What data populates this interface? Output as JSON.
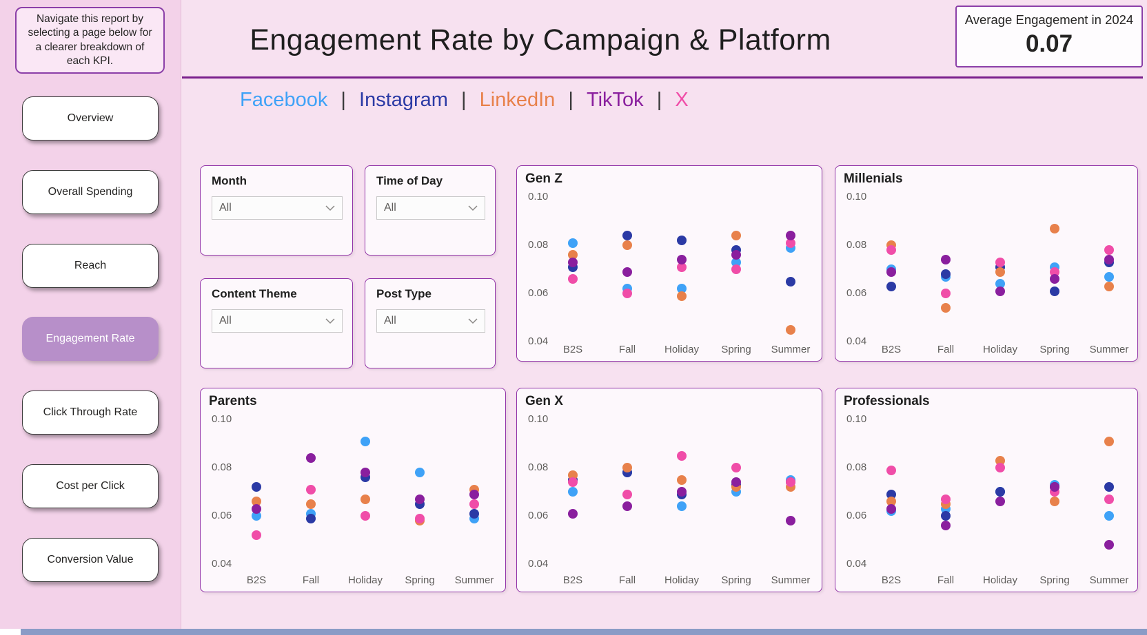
{
  "sidebar": {
    "note": "Navigate this report by selecting a page below for a clearer breakdown of each KPI.",
    "items": [
      {
        "label": "Overview",
        "selected": false
      },
      {
        "label": "Overall Spending",
        "selected": false
      },
      {
        "label": "Reach",
        "selected": false
      },
      {
        "label": "Engagement Rate",
        "selected": true
      },
      {
        "label": "Click Through Rate",
        "selected": false
      },
      {
        "label": "Cost per Click",
        "selected": false
      },
      {
        "label": "Conversion Value",
        "selected": false
      }
    ]
  },
  "header": {
    "title": "Engagement Rate by Campaign & Platform",
    "kpi": {
      "label": "Average Engagement in 2024",
      "value": "0.07"
    }
  },
  "legend": {
    "separator": "|",
    "items": [
      {
        "label": "Facebook",
        "color": "#3FA2F7"
      },
      {
        "label": "Instagram",
        "color": "#2B3AA5"
      },
      {
        "label": "LinkedIn",
        "color": "#E8814B"
      },
      {
        "label": "TikTok",
        "color": "#8A1F9E"
      },
      {
        "label": "X",
        "color": "#F04DA8"
      }
    ]
  },
  "filters": [
    {
      "label": "Month",
      "value": "All"
    },
    {
      "label": "Time of Day",
      "value": "All"
    },
    {
      "label": "Content Theme",
      "value": "All"
    },
    {
      "label": "Post Type",
      "value": "All"
    }
  ],
  "chart_data": [
    {
      "type": "scatter",
      "title": "Gen Z",
      "categories": [
        "B2S",
        "Fall",
        "Holiday",
        "Spring",
        "Summer"
      ],
      "y_ticks": [
        0.04,
        0.06,
        0.08,
        0.1
      ],
      "ylim": [
        0.04,
        0.1
      ],
      "series": [
        {
          "name": "Facebook",
          "color": "#3FA2F7",
          "values": [
            0.081,
            0.062,
            0.062,
            0.073,
            0.079
          ]
        },
        {
          "name": "Instagram",
          "color": "#2B3AA5",
          "values": [
            0.071,
            0.084,
            0.082,
            0.078,
            0.065
          ]
        },
        {
          "name": "LinkedIn",
          "color": "#E8814B",
          "values": [
            0.076,
            0.08,
            0.059,
            0.084,
            0.045
          ]
        },
        {
          "name": "X",
          "color": "#F04DA8",
          "values": [
            0.066,
            0.06,
            0.071,
            0.07,
            0.081
          ]
        },
        {
          "name": "TikTok",
          "color": "#8A1F9E",
          "values": [
            0.073,
            0.069,
            0.074,
            0.076,
            0.084
          ]
        }
      ]
    },
    {
      "type": "scatter",
      "title": "Millenials",
      "categories": [
        "B2S",
        "Fall",
        "Holiday",
        "Spring",
        "Summer"
      ],
      "y_ticks": [
        0.04,
        0.06,
        0.08,
        0.1
      ],
      "ylim": [
        0.04,
        0.1
      ],
      "series": [
        {
          "name": "Facebook",
          "color": "#3FA2F7",
          "values": [
            0.07,
            0.067,
            0.064,
            0.071,
            0.067
          ]
        },
        {
          "name": "Instagram",
          "color": "#2B3AA5",
          "values": [
            0.063,
            0.068,
            0.071,
            0.061,
            0.073
          ]
        },
        {
          "name": "LinkedIn",
          "color": "#E8814B",
          "values": [
            0.08,
            0.054,
            0.069,
            0.087,
            0.063
          ]
        },
        {
          "name": "X",
          "color": "#F04DA8",
          "values": [
            0.078,
            0.06,
            0.073,
            0.069,
            0.078
          ]
        },
        {
          "name": "TikTok",
          "color": "#8A1F9E",
          "values": [
            0.069,
            0.074,
            0.061,
            0.066,
            0.074
          ]
        }
      ]
    },
    {
      "type": "scatter",
      "title": "Parents",
      "categories": [
        "B2S",
        "Fall",
        "Holiday",
        "Spring",
        "Summer"
      ],
      "y_ticks": [
        0.04,
        0.06,
        0.08,
        0.1
      ],
      "ylim": [
        0.04,
        0.1
      ],
      "series": [
        {
          "name": "Facebook",
          "color": "#3FA2F7",
          "values": [
            0.06,
            0.061,
            0.091,
            0.078,
            0.059
          ]
        },
        {
          "name": "Instagram",
          "color": "#2B3AA5",
          "values": [
            0.072,
            0.059,
            0.076,
            0.065,
            0.061
          ]
        },
        {
          "name": "LinkedIn",
          "color": "#E8814B",
          "values": [
            0.066,
            0.065,
            0.067,
            0.058,
            0.071
          ]
        },
        {
          "name": "X",
          "color": "#F04DA8",
          "values": [
            0.052,
            0.071,
            0.06,
            0.059,
            0.065
          ]
        },
        {
          "name": "TikTok",
          "color": "#8A1F9E",
          "values": [
            0.063,
            0.084,
            0.078,
            0.067,
            0.069
          ]
        }
      ]
    },
    {
      "type": "scatter",
      "title": "Gen X",
      "categories": [
        "B2S",
        "Fall",
        "Holiday",
        "Spring",
        "Summer"
      ],
      "y_ticks": [
        0.04,
        0.06,
        0.08,
        0.1
      ],
      "ylim": [
        0.04,
        0.1
      ],
      "series": [
        {
          "name": "Facebook",
          "color": "#3FA2F7",
          "values": [
            0.07,
            0.078,
            0.064,
            0.07,
            0.075
          ]
        },
        {
          "name": "Instagram",
          "color": "#2B3AA5",
          "values": [
            0.075,
            0.078,
            0.069,
            0.073,
            0.074
          ]
        },
        {
          "name": "LinkedIn",
          "color": "#E8814B",
          "values": [
            0.077,
            0.08,
            0.075,
            0.072,
            0.072
          ]
        },
        {
          "name": "X",
          "color": "#F04DA8",
          "values": [
            0.074,
            0.069,
            0.085,
            0.08,
            0.074
          ]
        },
        {
          "name": "TikTok",
          "color": "#8A1F9E",
          "values": [
            0.061,
            0.064,
            0.07,
            0.074,
            0.058
          ]
        }
      ]
    },
    {
      "type": "scatter",
      "title": "Professionals",
      "categories": [
        "B2S",
        "Fall",
        "Holiday",
        "Spring",
        "Summer"
      ],
      "y_ticks": [
        0.04,
        0.06,
        0.08,
        0.1
      ],
      "ylim": [
        0.04,
        0.1
      ],
      "series": [
        {
          "name": "Facebook",
          "color": "#3FA2F7",
          "values": [
            0.062,
            0.063,
            0.07,
            0.073,
            0.06
          ]
        },
        {
          "name": "Instagram",
          "color": "#2B3AA5",
          "values": [
            0.069,
            0.06,
            0.07,
            0.072,
            0.072
          ]
        },
        {
          "name": "LinkedIn",
          "color": "#E8814B",
          "values": [
            0.066,
            0.065,
            0.083,
            0.066,
            0.091
          ]
        },
        {
          "name": "X",
          "color": "#F04DA8",
          "values": [
            0.079,
            0.067,
            0.08,
            0.07,
            0.067
          ]
        },
        {
          "name": "TikTok",
          "color": "#8A1F9E",
          "values": [
            0.063,
            0.056,
            0.066,
            0.072,
            0.048
          ]
        }
      ]
    }
  ]
}
